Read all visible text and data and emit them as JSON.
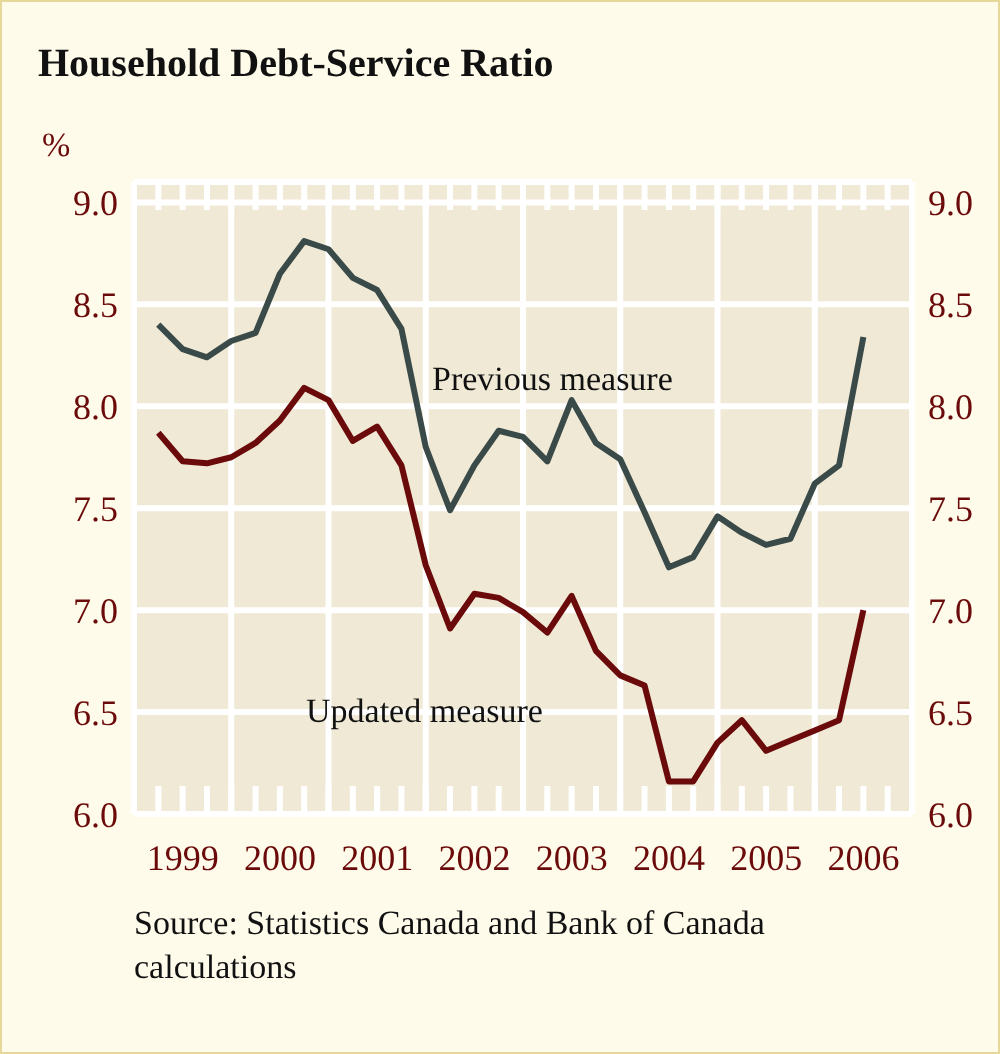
{
  "chart_data": {
    "type": "line",
    "title": "Household Debt-Service Ratio",
    "ylabel": "%",
    "annotations": [
      "Source:  Statistics Canada and Bank of Canada calculations"
    ],
    "x": [
      1999.25,
      1999.5,
      1999.75,
      2000,
      2000.25,
      2000.5,
      2000.75,
      2001,
      2001.25,
      2001.5,
      2001.75,
      2002,
      2002.25,
      2002.5,
      2002.75,
      2003,
      2003.25,
      2003.5,
      2003.75,
      2004,
      2004.25,
      2004.5,
      2004.75,
      2005,
      2005.25,
      2005.5,
      2005.75,
      2006,
      2006.25,
      2006.5
    ],
    "series": [
      {
        "name": "Previous measure",
        "color": "#3a4a48",
        "values": [
          8.4,
          8.28,
          8.24,
          8.32,
          8.36,
          8.65,
          8.81,
          8.77,
          8.63,
          8.57,
          8.38,
          7.8,
          7.49,
          7.71,
          7.88,
          7.85,
          7.73,
          8.03,
          7.82,
          7.74,
          7.48,
          7.21,
          7.26,
          7.46,
          7.38,
          7.32,
          7.35,
          7.62,
          7.71,
          8.34
        ]
      },
      {
        "name": "Updated measure",
        "color": "#6b0a0a",
        "values": [
          7.87,
          7.73,
          7.72,
          7.75,
          7.82,
          7.93,
          8.09,
          8.03,
          7.83,
          7.9,
          7.71,
          7.22,
          6.91,
          7.08,
          7.06,
          6.99,
          6.89,
          7.07,
          6.8,
          6.68,
          6.63,
          6.16,
          6.16,
          6.35,
          6.46,
          6.31,
          6.36,
          6.41,
          6.46,
          7.0
        ]
      }
    ],
    "xlim": [
      1999,
      2007
    ],
    "xticks": [
      {
        "value": 1999,
        "label": null
      },
      {
        "value": 1999.25,
        "label": null
      },
      {
        "value": 1999.5,
        "label": "1999"
      },
      {
        "value": 1999.75,
        "label": null
      },
      {
        "value": 2000,
        "label": null
      },
      {
        "value": 2000.25,
        "label": null
      },
      {
        "value": 2000.5,
        "label": "2000"
      },
      {
        "value": 2000.75,
        "label": null
      },
      {
        "value": 2001,
        "label": null
      },
      {
        "value": 2001.25,
        "label": null
      },
      {
        "value": 2001.5,
        "label": "2001"
      },
      {
        "value": 2001.75,
        "label": null
      },
      {
        "value": 2002,
        "label": null
      },
      {
        "value": 2002.25,
        "label": null
      },
      {
        "value": 2002.5,
        "label": "2002"
      },
      {
        "value": 2002.75,
        "label": null
      },
      {
        "value": 2003,
        "label": null
      },
      {
        "value": 2003.25,
        "label": null
      },
      {
        "value": 2003.5,
        "label": "2003"
      },
      {
        "value": 2003.75,
        "label": null
      },
      {
        "value": 2004,
        "label": null
      },
      {
        "value": 2004.25,
        "label": null
      },
      {
        "value": 2004.5,
        "label": "2004"
      },
      {
        "value": 2004.75,
        "label": null
      },
      {
        "value": 2005,
        "label": null
      },
      {
        "value": 2005.25,
        "label": null
      },
      {
        "value": 2005.5,
        "label": "2005"
      },
      {
        "value": 2005.75,
        "label": null
      },
      {
        "value": 2006,
        "label": null
      },
      {
        "value": 2006.25,
        "label": null
      },
      {
        "value": 2006.5,
        "label": "2006"
      },
      {
        "value": 2006.75,
        "label": null
      },
      {
        "value": 2007,
        "label": null
      }
    ],
    "ylim": [
      6,
      9.1
    ],
    "yticks": [
      {
        "value": 6,
        "label": "6.0"
      },
      {
        "value": 6.5,
        "label": "6.5"
      },
      {
        "value": 7,
        "label": "7.0"
      },
      {
        "value": 7.5,
        "label": "7.5"
      },
      {
        "value": 8,
        "label": "8.0"
      },
      {
        "value": 8.5,
        "label": "8.5"
      },
      {
        "value": 9,
        "label": "9.0"
      }
    ],
    "y2lim": [
      6,
      9.1
    ],
    "y2ticks": [
      {
        "value": 6,
        "label": "6.0"
      },
      {
        "value": 6.5,
        "label": "6.5"
      },
      {
        "value": 7,
        "label": "7.0"
      },
      {
        "value": 7.5,
        "label": "7.5"
      },
      {
        "value": 8,
        "label": "8.0"
      },
      {
        "value": 8.5,
        "label": "8.5"
      },
      {
        "value": 9,
        "label": "9.0"
      }
    ],
    "grid": true,
    "marker": "none",
    "line_style": "solid"
  }
}
